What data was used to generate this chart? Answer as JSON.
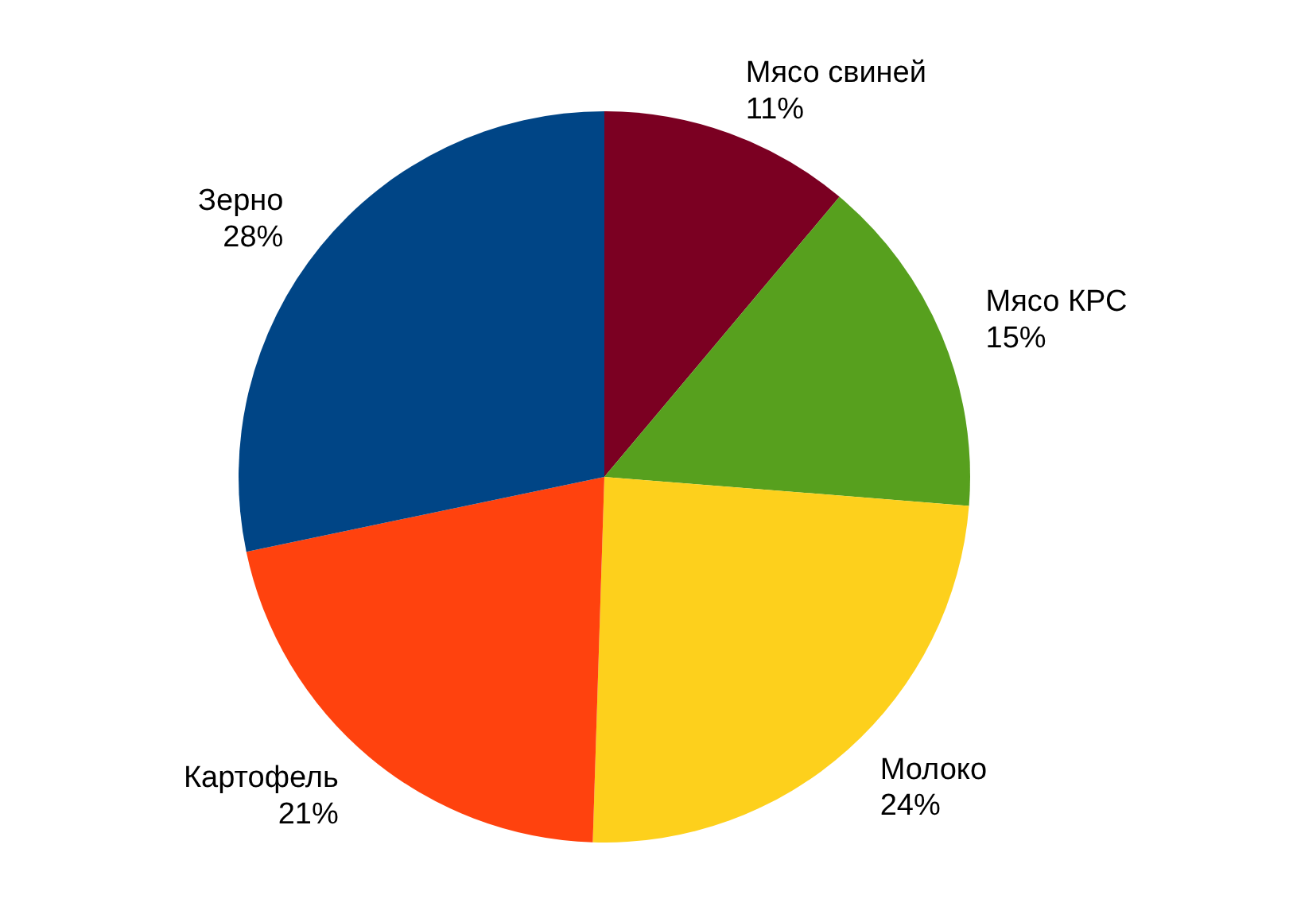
{
  "chart_data": {
    "type": "pie",
    "categories": [
      "Мясо свиней",
      "Мясо КРС",
      "Молоко",
      "Картофель",
      "Зерно"
    ],
    "values": [
      11,
      15,
      24,
      21,
      28
    ],
    "value_labels": [
      "11%",
      "15%",
      "24%",
      "21%",
      "28%"
    ],
    "colors": [
      "#7b0022",
      "#57a01e",
      "#fdd01c",
      "#ff420e",
      "#004586"
    ],
    "legend": false
  }
}
